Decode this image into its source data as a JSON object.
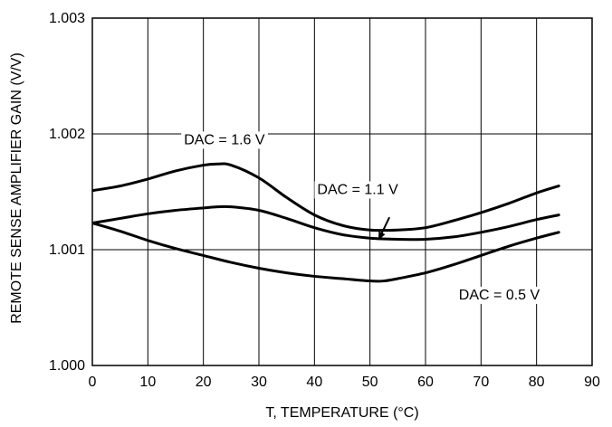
{
  "chart_data": {
    "type": "line",
    "title": "",
    "xlabel": "T, TEMPERATURE (°C)",
    "ylabel": "REMOTE SENSE AMPLIFIER GAIN (V/V)",
    "xlim": [
      0,
      90
    ],
    "ylim": [
      1.0,
      1.003
    ],
    "x_ticks": [
      0,
      10,
      20,
      30,
      40,
      50,
      60,
      70,
      80,
      90
    ],
    "y_ticks": [
      1.0,
      1.001,
      1.002,
      1.003
    ],
    "x_tick_labels": [
      "0",
      "10",
      "20",
      "30",
      "40",
      "50",
      "60",
      "70",
      "80",
      "90"
    ],
    "y_tick_labels": [
      "1.000",
      "1.001",
      "1.002",
      "1.003"
    ],
    "grid": true,
    "series": [
      {
        "name": "DAC = 1.6 V",
        "x": [
          0,
          5,
          10,
          15,
          20,
          22.5,
          25,
          30,
          35,
          40,
          45,
          50,
          55,
          60,
          65,
          70,
          75,
          80,
          84
        ],
        "y": [
          1.00151,
          1.00155,
          1.00161,
          1.00168,
          1.00173,
          1.00174,
          1.00173,
          1.00162,
          1.00145,
          1.0013,
          1.00121,
          1.00117,
          1.00117,
          1.00119,
          1.00125,
          1.00132,
          1.0014,
          1.00149,
          1.00155
        ]
      },
      {
        "name": "DAC = 1.1 V",
        "x": [
          0,
          5,
          10,
          15,
          20,
          22.5,
          25,
          30,
          35,
          40,
          45,
          50,
          55,
          60,
          65,
          70,
          75,
          80,
          84
        ],
        "y": [
          1.00123,
          1.00127,
          1.00131,
          1.00134,
          1.00136,
          1.00137,
          1.00137,
          1.00134,
          1.00127,
          1.00119,
          1.00113,
          1.0011,
          1.00109,
          1.00109,
          1.00111,
          1.00115,
          1.0012,
          1.00126,
          1.0013
        ]
      },
      {
        "name": "DAC = 0.5 V",
        "x": [
          0,
          5,
          10,
          15,
          20,
          25,
          30,
          35,
          40,
          45,
          50,
          52.5,
          55,
          60,
          65,
          70,
          75,
          80,
          84
        ],
        "y": [
          1.00123,
          1.00116,
          1.00108,
          1.00101,
          1.00095,
          1.00089,
          1.00084,
          1.0008,
          1.00077,
          1.00075,
          1.00073,
          1.00073,
          1.00075,
          1.0008,
          1.00087,
          1.00095,
          1.00103,
          1.0011,
          1.00115
        ]
      }
    ],
    "annotations": [
      {
        "text": "DAC = 1.6 V",
        "x": 16.5,
        "y": 1.00195
      },
      {
        "text": "DAC = 1.1 V",
        "x": 40.5,
        "y": 1.00152
      },
      {
        "text": "DAC = 0.5 V",
        "x": 66,
        "y": 1.00061
      }
    ],
    "arrow": {
      "from": {
        "x": 53.5,
        "y": 1.00128
      },
      "to": {
        "x": 51.6,
        "y": 1.00109
      }
    }
  }
}
